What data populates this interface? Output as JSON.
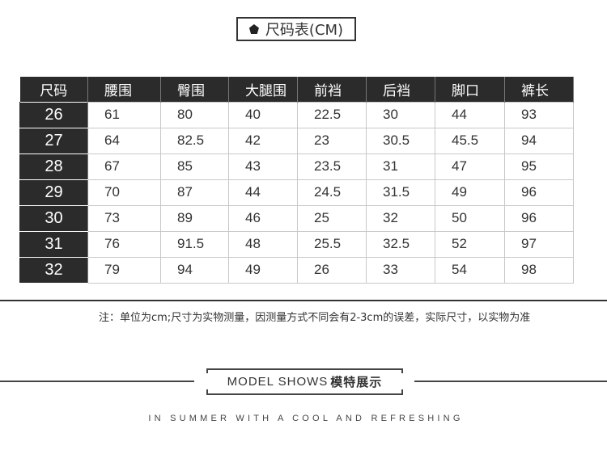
{
  "title": "尺码表(CM)",
  "table": {
    "headers": [
      "尺码",
      "腰围",
      "臀围",
      "大腿围",
      "前裆",
      "后裆",
      "脚口",
      "裤长"
    ],
    "rows": [
      [
        "26",
        "61",
        "80",
        "40",
        "22.5",
        "30",
        "44",
        "93"
      ],
      [
        "27",
        "64",
        "82.5",
        "42",
        "23",
        "30.5",
        "45.5",
        "94"
      ],
      [
        "28",
        "67",
        "85",
        "43",
        "23.5",
        "31",
        "47",
        "95"
      ],
      [
        "29",
        "70",
        "87",
        "44",
        "24.5",
        "31.5",
        "49",
        "96"
      ],
      [
        "30",
        "73",
        "89",
        "46",
        "25",
        "32",
        "50",
        "96"
      ],
      [
        "31",
        "76",
        "91.5",
        "48",
        "25.5",
        "32.5",
        "52",
        "97"
      ],
      [
        "32",
        "79",
        "94",
        "49",
        "26",
        "33",
        "54",
        "98"
      ]
    ]
  },
  "note": "注：单位为cm;尺寸为实物测量，因测量方式不同会有2-3cm的误差，实际尺寸，以实物为准",
  "model": {
    "en": "MODEL SHOWS",
    "cn": "模特展示"
  },
  "tagline": "IN SUMMER WITH A COOL AND REFRESHING"
}
